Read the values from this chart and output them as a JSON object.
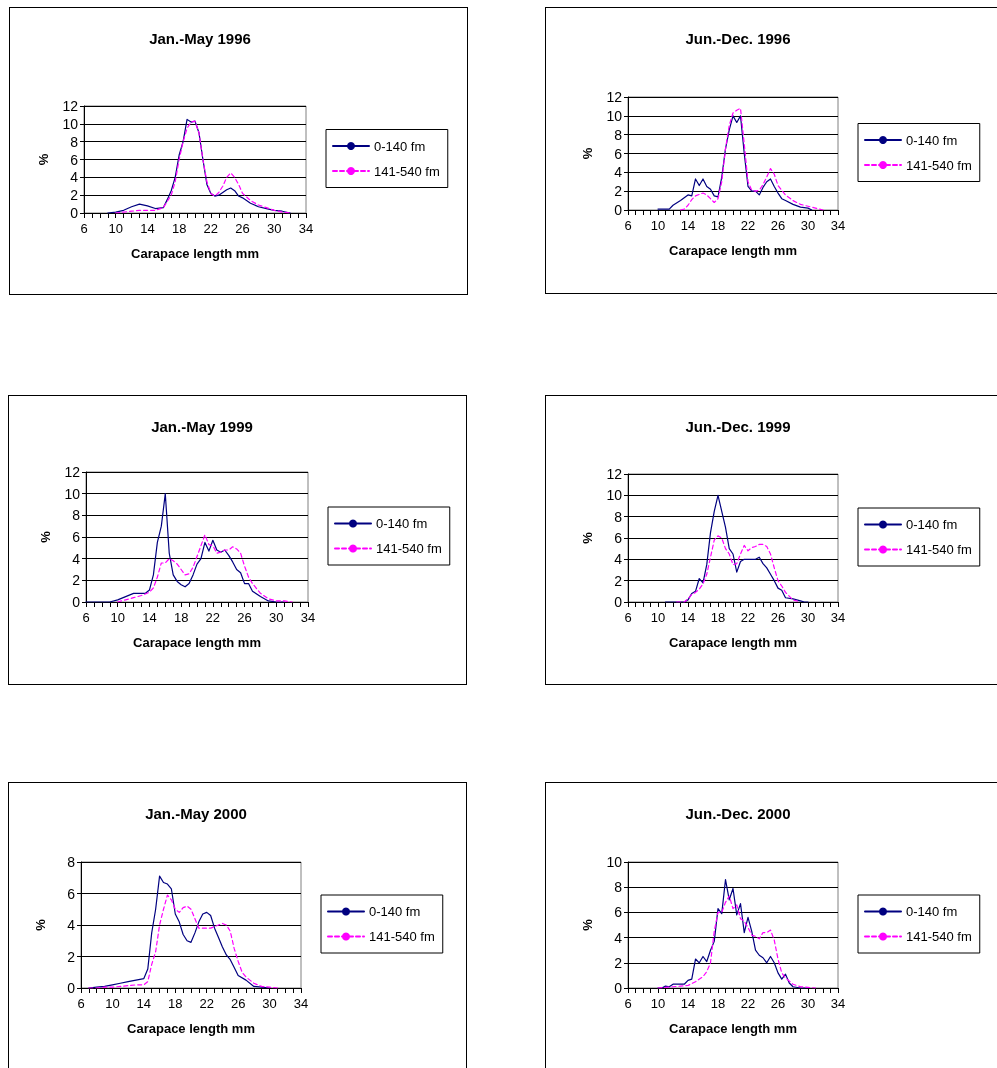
{
  "chart_data": [
    {
      "type": "line",
      "title": "Jan.-May 1996",
      "xlabel": "Carapace length mm",
      "ylabel": "%",
      "xlim": [
        6,
        34
      ],
      "ylim": [
        0,
        12
      ],
      "yticks": [
        0,
        2,
        4,
        6,
        8,
        10,
        12
      ],
      "xticks": [
        6,
        {
          "value": 7,
          "label": null
        },
        {
          "value": 8,
          "label": null
        },
        {
          "value": 9,
          "label": null
        },
        10,
        {
          "value": 11,
          "label": null
        },
        {
          "value": 12,
          "label": null
        },
        {
          "value": 13,
          "label": null
        },
        14,
        {
          "value": 15,
          "label": null
        },
        {
          "value": 16,
          "label": null
        },
        {
          "value": 17,
          "label": null
        },
        18,
        {
          "value": 19,
          "label": null
        },
        {
          "value": 20,
          "label": null
        },
        {
          "value": 21,
          "label": null
        },
        22,
        {
          "value": 23,
          "label": null
        },
        {
          "value": 24,
          "label": null
        },
        {
          "value": 25,
          "label": null
        },
        26,
        {
          "value": 27,
          "label": null
        },
        {
          "value": 28,
          "label": null
        },
        {
          "value": 29,
          "label": null
        },
        30,
        {
          "value": 31,
          "label": null
        },
        {
          "value": 32,
          "label": null
        },
        {
          "value": 33,
          "label": null
        },
        34
      ],
      "grid": "y",
      "legend": "right",
      "marker": "none",
      "series": [
        {
          "name": "0-140 fm",
          "color": "#000080",
          "line_style": "solid",
          "x": [
            9,
            10,
            11,
            12,
            13,
            14,
            15,
            16,
            16.5,
            17,
            17.5,
            18,
            18.5,
            19,
            19.5,
            20,
            20.5,
            21,
            21.5,
            22,
            22.5,
            23,
            23.5,
            24,
            24.5,
            25,
            25.5,
            26,
            27,
            28,
            29,
            30,
            31,
            32
          ],
          "values": [
            0,
            0.1,
            0.3,
            0.7,
            1.0,
            0.8,
            0.5,
            0.6,
            1.5,
            2.5,
            4,
            6.5,
            8,
            10.5,
            10.2,
            10.3,
            9,
            6,
            3.2,
            2.2,
            1.9,
            2.0,
            2.3,
            2.6,
            2.8,
            2.5,
            1.9,
            1.7,
            1.1,
            0.7,
            0.5,
            0.3,
            0.2,
            0
          ]
        },
        {
          "name": "141-540 fm",
          "color": "#ff00ff",
          "line_style": "dashed",
          "x": [
            10,
            11,
            12,
            13,
            14,
            15,
            16,
            17,
            17.5,
            18,
            18.5,
            19,
            19.5,
            20,
            20.5,
            21,
            21.5,
            22,
            22.5,
            23,
            23.5,
            24,
            24.5,
            25,
            25.5,
            26,
            27,
            28,
            29,
            30,
            31,
            32
          ],
          "values": [
            0,
            0.1,
            0.2,
            0.3,
            0.3,
            0.3,
            0.6,
            2,
            3.5,
            6,
            8,
            9.5,
            10.2,
            10.3,
            9,
            6,
            3.5,
            2.2,
            1.9,
            2.3,
            3,
            4,
            4.5,
            4,
            3.2,
            2.2,
            1.4,
            0.9,
            0.6,
            0.3,
            0.1,
            0
          ]
        }
      ]
    },
    {
      "type": "line",
      "title": "Jun.-Dec. 1996",
      "xlabel": "Carapace length mm",
      "ylabel": "%",
      "xlim": [
        6,
        34
      ],
      "ylim": [
        0,
        12
      ],
      "yticks": [
        0,
        2,
        4,
        6,
        8,
        10,
        12
      ],
      "xticks": [
        6,
        {
          "value": 7,
          "label": null
        },
        {
          "value": 8,
          "label": null
        },
        {
          "value": 9,
          "label": null
        },
        10,
        {
          "value": 11,
          "label": null
        },
        {
          "value": 12,
          "label": null
        },
        {
          "value": 13,
          "label": null
        },
        14,
        {
          "value": 15,
          "label": null
        },
        {
          "value": 16,
          "label": null
        },
        {
          "value": 17,
          "label": null
        },
        18,
        {
          "value": 19,
          "label": null
        },
        {
          "value": 20,
          "label": null
        },
        {
          "value": 21,
          "label": null
        },
        22,
        {
          "value": 23,
          "label": null
        },
        {
          "value": 24,
          "label": null
        },
        {
          "value": 25,
          "label": null
        },
        26,
        {
          "value": 27,
          "label": null
        },
        {
          "value": 28,
          "label": null
        },
        {
          "value": 29,
          "label": null
        },
        30,
        {
          "value": 31,
          "label": null
        },
        {
          "value": 32,
          "label": null
        },
        {
          "value": 33,
          "label": null
        },
        34
      ],
      "grid": "y",
      "legend": "right",
      "marker": "none",
      "series": [
        {
          "name": "0-140 fm",
          "color": "#000080",
          "line_style": "solid",
          "x": [
            10,
            11,
            11.5,
            12,
            13,
            14,
            14.5,
            15,
            15.5,
            16,
            16.5,
            17,
            17.5,
            18,
            18.5,
            19,
            19.5,
            20,
            20.5,
            21,
            21.5,
            22,
            22.5,
            23,
            23.5,
            24,
            24.5,
            25,
            25.5,
            26,
            26.5,
            27,
            28,
            29,
            30,
            30.5
          ],
          "values": [
            0.1,
            0.1,
            0.1,
            0.5,
            1.0,
            1.6,
            1.5,
            3.3,
            2.6,
            3.3,
            2.5,
            2.2,
            1.5,
            1.4,
            3.5,
            6.5,
            8.5,
            10,
            9.3,
            10,
            6,
            2.5,
            2,
            2,
            1.6,
            2.4,
            3,
            3.3,
            2.5,
            1.8,
            1.2,
            1.0,
            0.6,
            0.3,
            0.2,
            0
          ]
        },
        {
          "name": "141-540 fm",
          "color": "#ff00ff",
          "line_style": "dashed",
          "x": [
            13,
            13.5,
            14,
            14.5,
            15,
            16,
            16.5,
            17,
            17.5,
            18,
            18.5,
            19,
            19.5,
            20,
            20.5,
            21,
            21.5,
            22,
            22.5,
            23,
            23.5,
            24,
            24.5,
            25,
            25.5,
            26,
            27,
            28,
            29,
            30,
            31,
            32
          ],
          "values": [
            0,
            0.1,
            0.5,
            1.1,
            1.5,
            1.8,
            1.6,
            1.2,
            0.8,
            1.2,
            3,
            6.5,
            9,
            10.3,
            10.6,
            10.8,
            7,
            3,
            2.1,
            2,
            2.1,
            2.7,
            3.5,
            4.4,
            3.8,
            2.6,
            1.6,
            1.0,
            0.6,
            0.4,
            0.2,
            0
          ]
        }
      ]
    },
    {
      "type": "line",
      "title": "Jan.-May 1999",
      "xlabel": "Carapace length mm",
      "ylabel": "%",
      "xlim": [
        6,
        34
      ],
      "ylim": [
        0,
        12
      ],
      "yticks": [
        0,
        2,
        4,
        6,
        8,
        10,
        12
      ],
      "xticks": [
        6,
        {
          "value": 7,
          "label": null
        },
        {
          "value": 8,
          "label": null
        },
        {
          "value": 9,
          "label": null
        },
        10,
        {
          "value": 11,
          "label": null
        },
        {
          "value": 12,
          "label": null
        },
        {
          "value": 13,
          "label": null
        },
        14,
        {
          "value": 15,
          "label": null
        },
        {
          "value": 16,
          "label": null
        },
        {
          "value": 17,
          "label": null
        },
        18,
        {
          "value": 19,
          "label": null
        },
        {
          "value": 20,
          "label": null
        },
        {
          "value": 21,
          "label": null
        },
        22,
        {
          "value": 23,
          "label": null
        },
        {
          "value": 24,
          "label": null
        },
        {
          "value": 25,
          "label": null
        },
        26,
        {
          "value": 27,
          "label": null
        },
        {
          "value": 28,
          "label": null
        },
        {
          "value": 29,
          "label": null
        },
        30,
        {
          "value": 31,
          "label": null
        },
        {
          "value": 32,
          "label": null
        },
        {
          "value": 33,
          "label": null
        },
        34
      ],
      "grid": "y",
      "legend": "right",
      "marker": "none",
      "series": [
        {
          "name": "0-140 fm",
          "color": "#000080",
          "line_style": "solid",
          "x": [
            6,
            7,
            8,
            9,
            10,
            11,
            12,
            13,
            13.5,
            14,
            14.5,
            15,
            15.5,
            16,
            16.5,
            17,
            17.5,
            18,
            18.5,
            19,
            19.5,
            20,
            20.5,
            21,
            21.5,
            22,
            22.5,
            23,
            23.5,
            24,
            24.5,
            25,
            25.5,
            26,
            26.5,
            27,
            28,
            29,
            30,
            31
          ],
          "values": [
            0,
            0,
            0,
            0,
            0.2,
            0.5,
            0.8,
            0.8,
            0.8,
            1.1,
            2.5,
            5.5,
            7,
            10,
            4.5,
            2.5,
            1.9,
            1.6,
            1.4,
            1.7,
            2.5,
            3.5,
            4,
            5.5,
            4.7,
            5.7,
            4.8,
            4.6,
            4.8,
            4.3,
            3.7,
            3,
            2.7,
            1.7,
            1.7,
            1,
            0.5,
            0.1,
            0,
            0
          ]
        },
        {
          "name": "141-540 fm",
          "color": "#ff00ff",
          "line_style": "dashed",
          "x": [
            10,
            11,
            12,
            13,
            14,
            14.5,
            15,
            15.5,
            16,
            16.5,
            17,
            17.5,
            18,
            18.5,
            19,
            19.5,
            20,
            20.5,
            21,
            21.5,
            22,
            22.5,
            23,
            23.5,
            24,
            24.5,
            25,
            25.5,
            26,
            26.5,
            27,
            28,
            29,
            30,
            31,
            32
          ],
          "values": [
            0,
            0.2,
            0.4,
            0.6,
            0.9,
            1.3,
            2.3,
            3.6,
            3.6,
            4.0,
            3.8,
            3.5,
            3.0,
            2.5,
            2.6,
            3.2,
            4.2,
            5.2,
            6.2,
            5.3,
            5.2,
            4.5,
            4.6,
            4.8,
            4.8,
            5.1,
            4.9,
            4.5,
            3.3,
            2.3,
            1.7,
            0.8,
            0.3,
            0.1,
            0.1,
            0
          ]
        }
      ]
    },
    {
      "type": "line",
      "title": "Jun.-Dec. 1999",
      "xlabel": "Carapace length mm",
      "ylabel": "%",
      "xlim": [
        6,
        34
      ],
      "ylim": [
        0,
        12
      ],
      "yticks": [
        0,
        2,
        4,
        6,
        8,
        10,
        12
      ],
      "xticks": [
        6,
        {
          "value": 7,
          "label": null
        },
        {
          "value": 8,
          "label": null
        },
        {
          "value": 9,
          "label": null
        },
        10,
        {
          "value": 11,
          "label": null
        },
        {
          "value": 12,
          "label": null
        },
        {
          "value": 13,
          "label": null
        },
        14,
        {
          "value": 15,
          "label": null
        },
        {
          "value": 16,
          "label": null
        },
        {
          "value": 17,
          "label": null
        },
        18,
        {
          "value": 19,
          "label": null
        },
        {
          "value": 20,
          "label": null
        },
        {
          "value": 21,
          "label": null
        },
        22,
        {
          "value": 23,
          "label": null
        },
        {
          "value": 24,
          "label": null
        },
        {
          "value": 25,
          "label": null
        },
        26,
        {
          "value": 27,
          "label": null
        },
        {
          "value": 28,
          "label": null
        },
        {
          "value": 29,
          "label": null
        },
        30,
        {
          "value": 31,
          "label": null
        },
        {
          "value": 32,
          "label": null
        },
        {
          "value": 33,
          "label": null
        },
        34
      ],
      "grid": "y",
      "legend": "right",
      "marker": "none",
      "series": [
        {
          "name": "0-140 fm",
          "color": "#000080",
          "line_style": "solid",
          "x": [
            11,
            12,
            13,
            13.5,
            14,
            14.5,
            15,
            15.5,
            16,
            16.5,
            17,
            17.5,
            18,
            18.5,
            19,
            19.5,
            20,
            20.5,
            21,
            21.5,
            22,
            22.5,
            23,
            23.5,
            24,
            24.5,
            25,
            25.5,
            26,
            26.5,
            27,
            28,
            28.5,
            29,
            29.5,
            30
          ],
          "values": [
            0,
            0,
            0,
            0,
            0.2,
            0.8,
            1.0,
            2.2,
            1.8,
            3.5,
            6.5,
            8.5,
            10,
            8.5,
            7,
            5,
            4.5,
            2.8,
            3.8,
            4,
            4,
            4,
            4,
            4.2,
            3.6,
            3.2,
            2.6,
            2,
            1.3,
            1.1,
            0.4,
            0.3,
            0.2,
            0.1,
            0,
            0
          ]
        },
        {
          "name": "141-540 fm",
          "color": "#ff00ff",
          "line_style": "dashed",
          "x": [
            12.5,
            13,
            13.5,
            14,
            14.5,
            15,
            15.5,
            16,
            16.5,
            17,
            17.5,
            18,
            18.5,
            19,
            19.5,
            20,
            20.5,
            21,
            21.5,
            22,
            22.5,
            23,
            23.5,
            24,
            24.5,
            25,
            25.5,
            26,
            26.5,
            27,
            28,
            29
          ],
          "values": [
            0,
            0,
            0,
            0.3,
            0.7,
            0.9,
            1.2,
            1.7,
            2.6,
            4.2,
            5.8,
            6.2,
            6.0,
            5.0,
            4.5,
            3.5,
            3.6,
            4.5,
            5.3,
            4.8,
            5.1,
            5.2,
            5.4,
            5.4,
            5.2,
            4.5,
            3.2,
            2.0,
            1.5,
            0.9,
            0.2,
            0
          ]
        }
      ]
    },
    {
      "type": "line",
      "title": "Jan.-May 2000",
      "xlabel": "Carapace length mm",
      "ylabel": "%",
      "xlim": [
        6,
        34
      ],
      "ylim": [
        0,
        8
      ],
      "yticks": [
        0,
        2,
        4,
        6,
        8
      ],
      "xticks": [
        6,
        {
          "value": 7,
          "label": null
        },
        {
          "value": 8,
          "label": null
        },
        {
          "value": 9,
          "label": null
        },
        10,
        {
          "value": 11,
          "label": null
        },
        {
          "value": 12,
          "label": null
        },
        {
          "value": 13,
          "label": null
        },
        14,
        {
          "value": 15,
          "label": null
        },
        {
          "value": 16,
          "label": null
        },
        {
          "value": 17,
          "label": null
        },
        18,
        {
          "value": 19,
          "label": null
        },
        {
          "value": 20,
          "label": null
        },
        {
          "value": 21,
          "label": null
        },
        22,
        {
          "value": 23,
          "label": null
        },
        {
          "value": 24,
          "label": null
        },
        {
          "value": 25,
          "label": null
        },
        26,
        {
          "value": 27,
          "label": null
        },
        {
          "value": 28,
          "label": null
        },
        {
          "value": 29,
          "label": null
        },
        30,
        {
          "value": 31,
          "label": null
        },
        {
          "value": 32,
          "label": null
        },
        {
          "value": 33,
          "label": null
        },
        34
      ],
      "grid": "y",
      "legend": "right",
      "marker": "none",
      "series": [
        {
          "name": "0-140 fm",
          "color": "#000080",
          "line_style": "solid",
          "x": [
            7,
            8,
            9,
            10,
            11,
            12,
            13,
            14,
            14.5,
            15,
            15.5,
            16,
            16.5,
            17,
            17.5,
            18,
            18.5,
            19,
            19.5,
            20,
            20.5,
            21,
            21.5,
            22,
            22.5,
            23,
            23.5,
            24,
            24.5,
            25,
            25.5,
            26,
            27,
            28,
            29,
            30
          ],
          "values": [
            0,
            0.05,
            0.1,
            0.2,
            0.3,
            0.4,
            0.5,
            0.6,
            1.2,
            3.5,
            5,
            7.1,
            6.7,
            6.6,
            6.3,
            4.7,
            4.2,
            3.4,
            3.0,
            2.9,
            3.5,
            4.2,
            4.7,
            4.8,
            4.6,
            3.8,
            3.2,
            2.6,
            2.1,
            1.8,
            1.3,
            0.8,
            0.5,
            0.1,
            0.05,
            0
          ]
        },
        {
          "name": "141-540 fm",
          "color": "#ff00ff",
          "line_style": "dashed",
          "x": [
            7,
            8,
            9,
            10,
            11,
            12,
            13,
            14,
            14.5,
            15,
            15.5,
            16,
            16.5,
            17,
            17.5,
            18,
            18.5,
            19,
            19.5,
            20,
            20.5,
            21,
            21.5,
            22,
            22.5,
            23,
            23.5,
            24,
            24.5,
            25,
            25.5,
            26,
            26.5,
            27,
            28,
            29,
            30,
            31
          ],
          "values": [
            0,
            0,
            0.05,
            0.05,
            0.1,
            0.15,
            0.2,
            0.2,
            0.4,
            1.5,
            2.3,
            4.0,
            5.0,
            5.9,
            5.6,
            5.0,
            4.8,
            5.1,
            5.2,
            5.0,
            4.4,
            3.8,
            3.8,
            3.8,
            3.8,
            3.9,
            4.0,
            4.1,
            4.0,
            3.6,
            2.5,
            1.7,
            1.0,
            0.7,
            0.3,
            0.1,
            0.05,
            0
          ]
        }
      ]
    },
    {
      "type": "line",
      "title": "Jun.-Dec. 2000",
      "xlabel": "Carapace length mm",
      "ylabel": "%",
      "xlim": [
        6,
        34
      ],
      "ylim": [
        0,
        10
      ],
      "yticks": [
        0,
        2,
        4,
        6,
        8,
        10
      ],
      "xticks": [
        6,
        {
          "value": 7,
          "label": null
        },
        {
          "value": 8,
          "label": null
        },
        {
          "value": 9,
          "label": null
        },
        10,
        {
          "value": 11,
          "label": null
        },
        {
          "value": 12,
          "label": null
        },
        {
          "value": 13,
          "label": null
        },
        14,
        {
          "value": 15,
          "label": null
        },
        {
          "value": 16,
          "label": null
        },
        {
          "value": 17,
          "label": null
        },
        18,
        {
          "value": 19,
          "label": null
        },
        {
          "value": 20,
          "label": null
        },
        {
          "value": 21,
          "label": null
        },
        22,
        {
          "value": 23,
          "label": null
        },
        {
          "value": 24,
          "label": null
        },
        {
          "value": 25,
          "label": null
        },
        26,
        {
          "value": 27,
          "label": null
        },
        {
          "value": 28,
          "label": null
        },
        {
          "value": 29,
          "label": null
        },
        30,
        {
          "value": 31,
          "label": null
        },
        {
          "value": 32,
          "label": null
        },
        {
          "value": 33,
          "label": null
        },
        34
      ],
      "grid": "y",
      "legend": "right",
      "marker": "none",
      "series": [
        {
          "name": "0-140 fm",
          "color": "#000080",
          "line_style": "solid",
          "x": [
            10,
            10.5,
            11,
            11.5,
            12,
            13,
            13.5,
            14,
            14.5,
            15,
            15.5,
            16,
            16.5,
            17,
            17.5,
            18,
            18.5,
            19,
            19.5,
            20,
            20.5,
            21,
            21.5,
            22,
            22.5,
            23,
            23.5,
            24,
            24.5,
            25,
            25.5,
            26,
            26.5,
            27,
            27.5,
            28,
            29,
            30
          ],
          "values": [
            0,
            0,
            0.15,
            0.1,
            0.3,
            0.3,
            0.3,
            0.6,
            0.7,
            2.3,
            2.0,
            2.5,
            2.1,
            3,
            3.7,
            6.3,
            5.9,
            8.6,
            7.0,
            7.9,
            5.8,
            6.7,
            4.4,
            5.6,
            4.5,
            3.0,
            2.6,
            2.4,
            2.0,
            2.5,
            2.0,
            1.2,
            0.7,
            1.1,
            0.4,
            0.1,
            0,
            0
          ]
        },
        {
          "name": "141-540 fm",
          "color": "#ff00ff",
          "line_style": "dashed",
          "x": [
            10,
            11,
            12,
            13,
            14,
            15,
            16,
            16.5,
            17,
            17.5,
            18,
            18.5,
            19,
            19.5,
            20,
            20.5,
            21,
            21.5,
            22,
            22.5,
            23,
            23.5,
            24,
            24.5,
            25,
            25.5,
            26,
            26.5,
            27,
            28,
            29,
            30,
            31
          ],
          "values": [
            0,
            0.05,
            0.1,
            0.15,
            0.2,
            0.5,
            0.9,
            1.3,
            2,
            4.5,
            6.0,
            6.0,
            6.8,
            7.3,
            6.3,
            6.6,
            5.5,
            5.3,
            4.8,
            4.2,
            4.1,
            3.9,
            4.4,
            4.4,
            4.6,
            3.8,
            2.3,
            1.2,
            0.8,
            0.3,
            0.1,
            0.05,
            0
          ]
        }
      ]
    }
  ]
}
